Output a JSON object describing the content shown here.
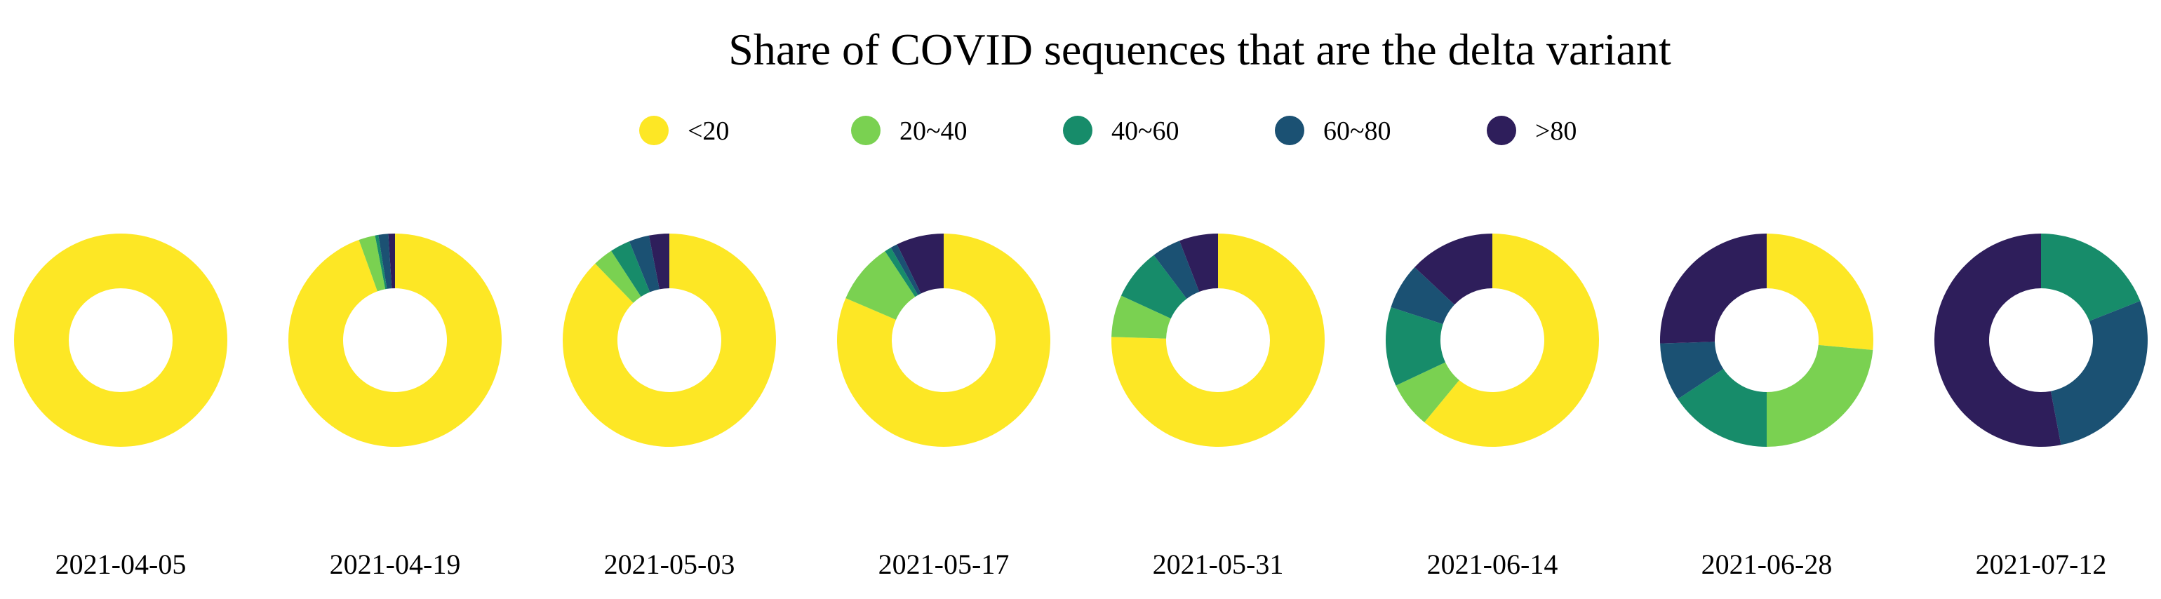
{
  "chart_data": {
    "type": "pie",
    "subtype": "donut",
    "title": "Share of COVID sequences that are the delta variant",
    "legend": {
      "placement": "top",
      "entries": [
        {
          "label": "<20",
          "color": "#FDE725"
        },
        {
          "label": "20~40",
          "color": "#7AD151"
        },
        {
          "label": "40~60",
          "color": "#178C6A"
        },
        {
          "label": "60~80",
          "color": "#1B5173"
        },
        {
          "label": ">80",
          "color": "#2E1E5B"
        }
      ]
    },
    "categories": [
      "<20",
      "20~40",
      "40~60",
      "60~80",
      ">80"
    ],
    "start_angle_deg": 0,
    "direction": "clockwise",
    "charts": [
      {
        "date": "2021-04-05",
        "values": [
          100,
          0,
          0,
          0,
          0
        ]
      },
      {
        "date": "2021-04-19",
        "values": [
          94.5,
          2.5,
          0.5,
          1.5,
          1
        ]
      },
      {
        "date": "2021-05-03",
        "values": [
          86,
          3,
          3,
          3,
          3
        ]
      },
      {
        "date": "2021-05-17",
        "values": [
          79,
          9,
          1,
          1,
          7
        ]
      },
      {
        "date": "2021-05-31",
        "values": [
          77,
          6.5,
          8,
          4.5,
          6
        ]
      },
      {
        "date": "2021-06-14",
        "values": [
          61,
          7,
          12,
          7,
          13
        ]
      },
      {
        "date": "2021-06-28",
        "values": [
          27,
          24,
          16,
          9,
          26
        ]
      },
      {
        "date": "2021-07-12",
        "values": [
          0,
          0,
          19,
          28,
          53
        ]
      }
    ]
  }
}
